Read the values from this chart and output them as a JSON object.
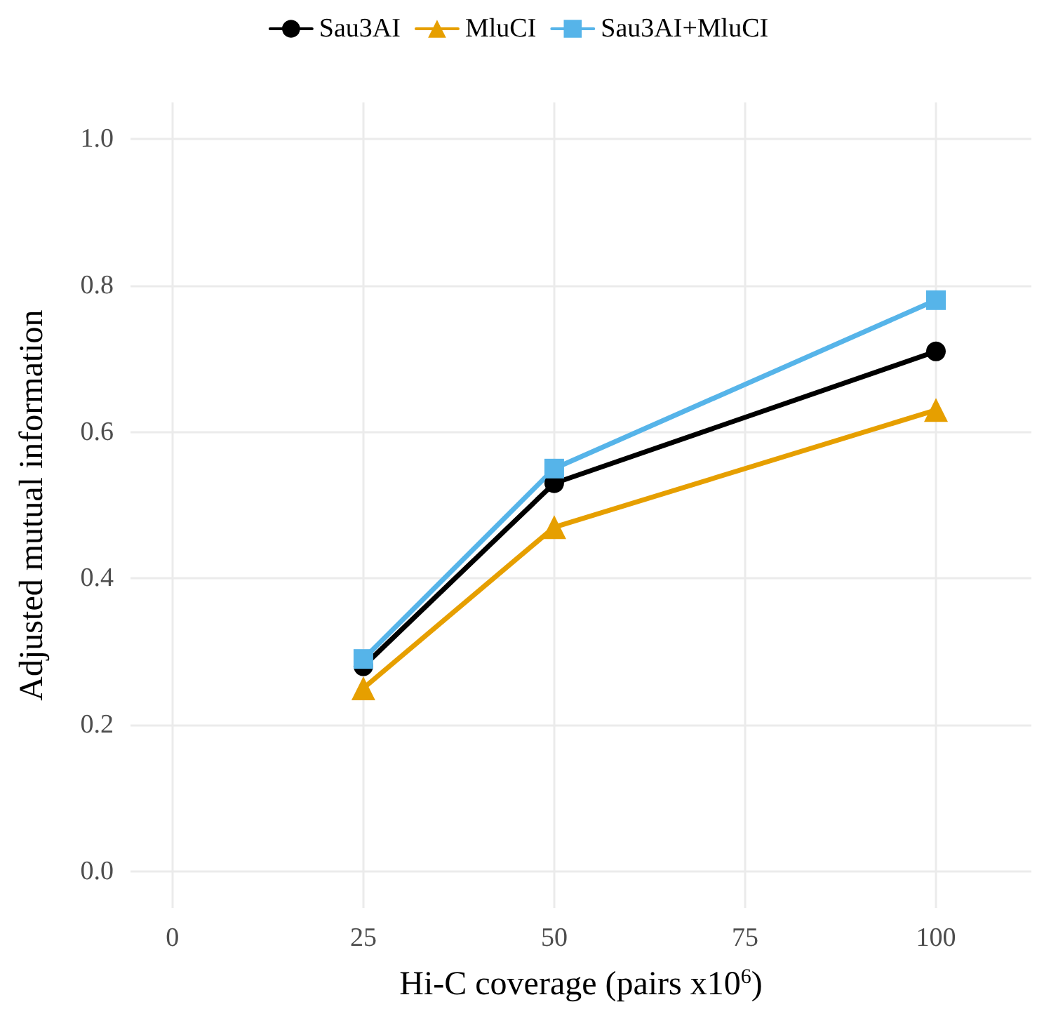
{
  "chart_data": {
    "type": "line",
    "xlabel": "Hi-C coverage (pairs x10$^{6}$)",
    "ylabel": "Adjusted mutual information",
    "x": [
      25,
      50,
      100
    ],
    "series": [
      {
        "name": "Sau3AI",
        "color": "#000000",
        "marker": "circle",
        "values": [
          0.28,
          0.53,
          0.71
        ]
      },
      {
        "name": "MluCI",
        "color": "#e69f00",
        "marker": "triangle",
        "values": [
          0.25,
          0.47,
          0.63
        ]
      },
      {
        "name": "Sau3AI+MluCI",
        "color": "#56b4e9",
        "marker": "square",
        "values": [
          0.29,
          0.55,
          0.78
        ]
      }
    ],
    "xlim": [
      -5.5,
      112.5
    ],
    "xticks": [
      0,
      25,
      50,
      75,
      100
    ],
    "ylim": [
      -0.05,
      1.05
    ],
    "yticks": [
      {
        "value": 0,
        "label": "0.0"
      },
      0.2,
      0.4,
      0.6,
      0.8,
      {
        "value": 1,
        "label": "1.0"
      }
    ],
    "grid": true,
    "legend": "top",
    "line_style": "solid"
  }
}
